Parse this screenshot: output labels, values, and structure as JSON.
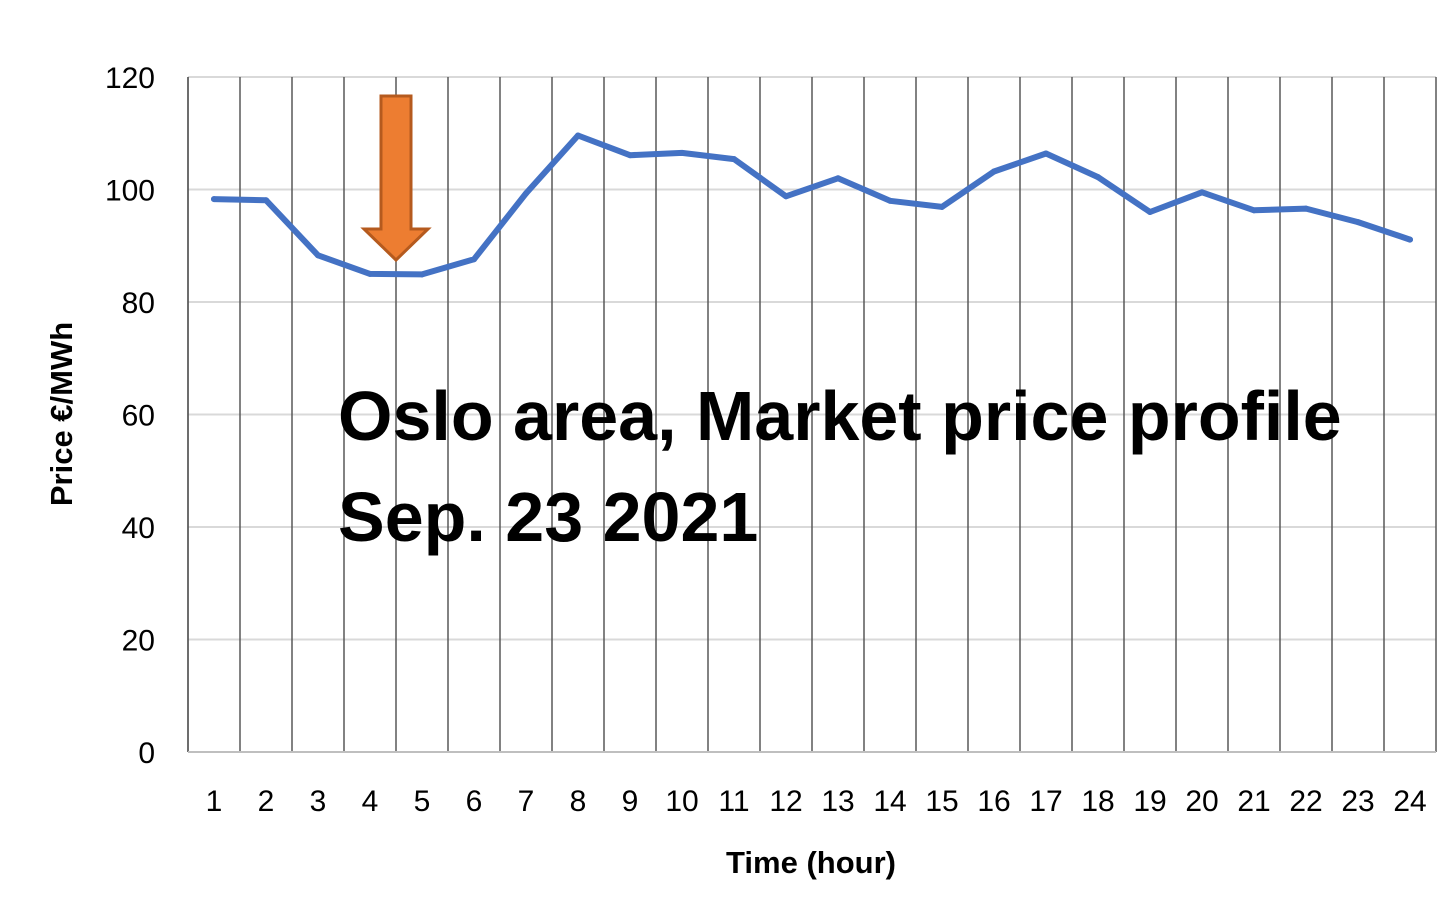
{
  "chart_data": {
    "type": "line",
    "title": "",
    "xlabel": "Time (hour)",
    "ylabel": "Price €/MWh",
    "categories": [
      "1",
      "2",
      "3",
      "4",
      "5",
      "6",
      "7",
      "8",
      "9",
      "10",
      "11",
      "12",
      "13",
      "14",
      "15",
      "16",
      "17",
      "18",
      "19",
      "20",
      "21",
      "22",
      "23",
      "24"
    ],
    "series": [
      {
        "values": [
          98.3,
          98.1,
          88.3,
          85.0,
          84.9,
          87.6,
          99.3,
          109.6,
          106.1,
          106.5,
          105.4,
          98.8,
          102.0,
          98.0,
          96.9,
          103.2,
          106.4,
          102.2,
          96.0,
          99.5,
          96.3,
          96.6,
          94.2,
          91.1
        ],
        "color": "#4472C4"
      }
    ],
    "ylim": [
      0,
      120
    ],
    "yticks": [
      0,
      20,
      40,
      60,
      80,
      100,
      120
    ],
    "grid": true,
    "legend": "none",
    "annotations": [
      {
        "lines": [
          "Oslo area, Market price profile",
          "Sep. 23 2021"
        ]
      },
      {
        "marker": "down-arrow",
        "at_x": 4.5,
        "color": "#ED7D31",
        "border": "#B55A1E"
      }
    ]
  }
}
